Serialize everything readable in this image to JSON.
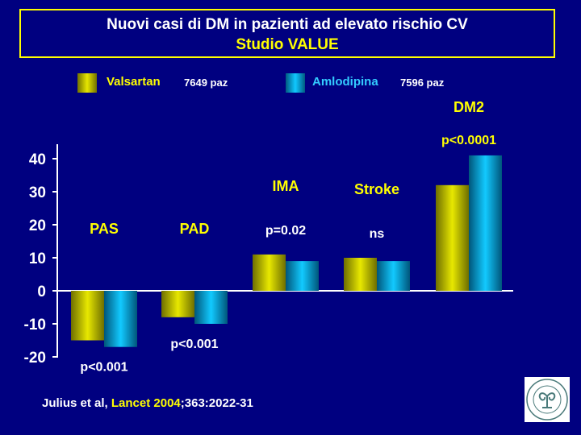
{
  "title": {
    "line1": "Nuovi casi di DM in pazienti ad elevato rischio CV",
    "line2": "Studio VALUE"
  },
  "legend": [
    {
      "name": "Valsartan",
      "count": "7649 paz",
      "color": "#c8c800"
    },
    {
      "name": "Amlodipina",
      "count": "7596 paz",
      "color": "#00a0d0"
    }
  ],
  "citation": {
    "authors": "Julius et al,",
    "journal": "Lancet",
    "year": "2004",
    "rest": ";363:2022-31"
  },
  "logo": {
    "icon": "university-seal-icon",
    "text": "UNIVERSITAS STUDIORUM INSUBRIAE"
  },
  "colors": {
    "background": "#000080",
    "title_border": "#ffff00",
    "label_yellow": "#ffff00",
    "text_white": "#ffffff",
    "axis": "#ffffff"
  },
  "chart_data": {
    "type": "bar",
    "categories": [
      "PAS",
      "PAD",
      "IMA",
      "Stroke",
      "DM2"
    ],
    "series": [
      {
        "name": "Valsartan",
        "values": [
          -15,
          -8,
          11,
          10,
          32
        ]
      },
      {
        "name": "Amlodipina",
        "values": [
          -17,
          -10,
          9,
          9,
          41
        ]
      }
    ],
    "p_values": [
      "p<0.001",
      "p<0.001",
      "p=0.02",
      "ns",
      "p<0.0001"
    ],
    "yticks": [
      40,
      30,
      20,
      10,
      0,
      -10,
      -20
    ],
    "ylim": [
      -20,
      40
    ],
    "grid": false,
    "legend": "top"
  }
}
